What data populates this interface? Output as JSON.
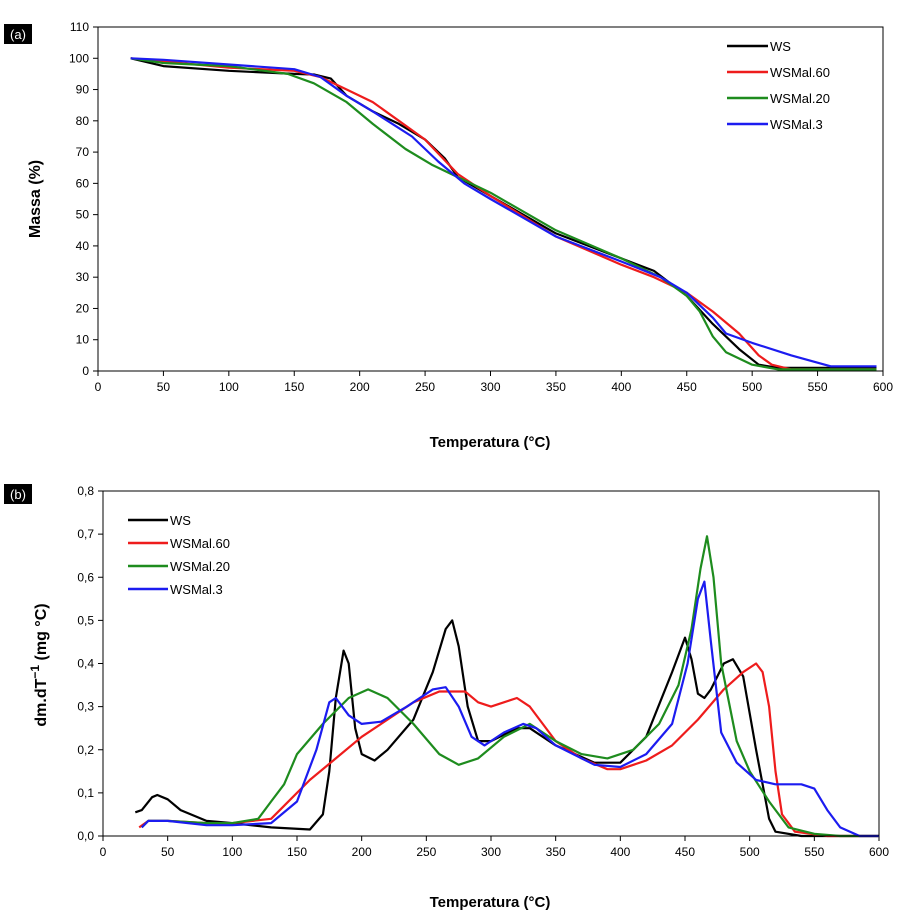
{
  "colors": {
    "WS": "#000000",
    "WSMal.60": "#ee1c1c",
    "WSMal.20": "#1e8c1e",
    "WSMal.3": "#1c1cf0"
  },
  "chart_data": [
    {
      "panel": "(a)",
      "type": "line",
      "xlabel": "Temperatura (°C)",
      "ylabel": "Massa (%)",
      "xlim": [
        0,
        600
      ],
      "ylim": [
        0,
        110
      ],
      "xticks": [
        "0",
        "50",
        "100",
        "150",
        "200",
        "250",
        "300",
        "350",
        "400",
        "450",
        "500",
        "550",
        "600"
      ],
      "yticks": [
        "0",
        "10",
        "20",
        "30",
        "40",
        "50",
        "60",
        "70",
        "80",
        "90",
        "100",
        "110"
      ],
      "legend_position": "top-right",
      "series": [
        {
          "name": "WS",
          "points": [
            [
              25,
              100
            ],
            [
              50,
              97.5
            ],
            [
              100,
              96
            ],
            [
              150,
              95
            ],
            [
              165,
              94.8
            ],
            [
              178,
              93.5
            ],
            [
              190,
              88
            ],
            [
              210,
              83
            ],
            [
              230,
              79
            ],
            [
              250,
              74
            ],
            [
              265,
              68
            ],
            [
              275,
              62
            ],
            [
              300,
              56
            ],
            [
              350,
              44
            ],
            [
              400,
              36
            ],
            [
              425,
              32
            ],
            [
              450,
              24
            ],
            [
              470,
              15
            ],
            [
              490,
              7
            ],
            [
              505,
              2
            ],
            [
              520,
              1
            ],
            [
              550,
              1
            ],
            [
              595,
              1
            ]
          ]
        },
        {
          "name": "WSMal.60",
          "points": [
            [
              25,
              100
            ],
            [
              50,
              99
            ],
            [
              100,
              97
            ],
            [
              150,
              96
            ],
            [
              170,
              94
            ],
            [
              190,
              90
            ],
            [
              210,
              86
            ],
            [
              230,
              80
            ],
            [
              250,
              74
            ],
            [
              275,
              63
            ],
            [
              300,
              56
            ],
            [
              350,
              43
            ],
            [
              400,
              34
            ],
            [
              425,
              30
            ],
            [
              450,
              25
            ],
            [
              470,
              19
            ],
            [
              490,
              12
            ],
            [
              505,
              5
            ],
            [
              515,
              2
            ],
            [
              530,
              0.5
            ],
            [
              595,
              0.5
            ]
          ]
        },
        {
          "name": "WSMal.20",
          "points": [
            [
              25,
              100
            ],
            [
              50,
              98.5
            ],
            [
              100,
              97.5
            ],
            [
              145,
              95
            ],
            [
              165,
              92
            ],
            [
              190,
              86
            ],
            [
              210,
              79
            ],
            [
              235,
              71
            ],
            [
              255,
              66
            ],
            [
              280,
              61
            ],
            [
              300,
              57
            ],
            [
              350,
              45
            ],
            [
              400,
              36
            ],
            [
              430,
              30
            ],
            [
              450,
              24
            ],
            [
              460,
              19
            ],
            [
              470,
              11
            ],
            [
              480,
              6
            ],
            [
              500,
              2
            ],
            [
              520,
              0.5
            ],
            [
              595,
              0.5
            ]
          ]
        },
        {
          "name": "WSMal.3",
          "points": [
            [
              25,
              100
            ],
            [
              50,
              99.5
            ],
            [
              100,
              98
            ],
            [
              150,
              96.5
            ],
            [
              170,
              94
            ],
            [
              190,
              88
            ],
            [
              210,
              83
            ],
            [
              240,
              75
            ],
            [
              260,
              67
            ],
            [
              280,
              60
            ],
            [
              300,
              55
            ],
            [
              350,
              43
            ],
            [
              400,
              35
            ],
            [
              430,
              30
            ],
            [
              450,
              25
            ],
            [
              470,
              17
            ],
            [
              480,
              12
            ],
            [
              500,
              9
            ],
            [
              530,
              5
            ],
            [
              560,
              1.5
            ],
            [
              580,
              1.5
            ],
            [
              595,
              1.5
            ]
          ]
        }
      ]
    },
    {
      "panel": "(b)",
      "type": "line",
      "xlabel": "Temperatura (°C)",
      "ylabel": "dm.dT",
      "ylabel_sup": "−1",
      "ylabel_unit": "(mg °C)",
      "xlim": [
        0,
        600
      ],
      "ylim": [
        0,
        0.8
      ],
      "xticks": [
        "0",
        "50",
        "100",
        "150",
        "200",
        "250",
        "300",
        "350",
        "400",
        "450",
        "500",
        "550",
        "600"
      ],
      "yticks": [
        "0,0",
        "0,1",
        "0,2",
        "0,3",
        "0,4",
        "0,5",
        "0,6",
        "0,7",
        "0,8"
      ],
      "legend_position": "top-left",
      "series": [
        {
          "name": "WS",
          "points": [
            [
              25,
              0.055
            ],
            [
              30,
              0.06
            ],
            [
              38,
              0.09
            ],
            [
              42,
              0.095
            ],
            [
              50,
              0.085
            ],
            [
              60,
              0.06
            ],
            [
              80,
              0.035
            ],
            [
              100,
              0.03
            ],
            [
              130,
              0.02
            ],
            [
              160,
              0.015
            ],
            [
              170,
              0.05
            ],
            [
              175,
              0.15
            ],
            [
              180,
              0.32
            ],
            [
              186,
              0.43
            ],
            [
              190,
              0.4
            ],
            [
              195,
              0.25
            ],
            [
              200,
              0.19
            ],
            [
              210,
              0.175
            ],
            [
              220,
              0.2
            ],
            [
              240,
              0.27
            ],
            [
              255,
              0.38
            ],
            [
              265,
              0.48
            ],
            [
              270,
              0.5
            ],
            [
              275,
              0.44
            ],
            [
              282,
              0.3
            ],
            [
              290,
              0.22
            ],
            [
              300,
              0.22
            ],
            [
              320,
              0.25
            ],
            [
              330,
              0.25
            ],
            [
              350,
              0.21
            ],
            [
              380,
              0.17
            ],
            [
              400,
              0.17
            ],
            [
              420,
              0.23
            ],
            [
              440,
              0.38
            ],
            [
              450,
              0.46
            ],
            [
              455,
              0.41
            ],
            [
              460,
              0.33
            ],
            [
              465,
              0.32
            ],
            [
              470,
              0.34
            ],
            [
              480,
              0.4
            ],
            [
              487,
              0.41
            ],
            [
              495,
              0.37
            ],
            [
              505,
              0.2
            ],
            [
              515,
              0.04
            ],
            [
              520,
              0.01
            ],
            [
              540,
              0.0
            ],
            [
              600,
              0.0
            ]
          ]
        },
        {
          "name": "WSMal.60",
          "points": [
            [
              28,
              0.02
            ],
            [
              35,
              0.035
            ],
            [
              50,
              0.035
            ],
            [
              80,
              0.03
            ],
            [
              100,
              0.03
            ],
            [
              130,
              0.04
            ],
            [
              140,
              0.07
            ],
            [
              160,
              0.13
            ],
            [
              180,
              0.18
            ],
            [
              200,
              0.23
            ],
            [
              220,
              0.27
            ],
            [
              240,
              0.31
            ],
            [
              260,
              0.335
            ],
            [
              280,
              0.335
            ],
            [
              290,
              0.31
            ],
            [
              300,
              0.3
            ],
            [
              310,
              0.31
            ],
            [
              320,
              0.32
            ],
            [
              330,
              0.3
            ],
            [
              350,
              0.22
            ],
            [
              370,
              0.18
            ],
            [
              390,
              0.155
            ],
            [
              400,
              0.155
            ],
            [
              420,
              0.175
            ],
            [
              440,
              0.21
            ],
            [
              460,
              0.27
            ],
            [
              480,
              0.34
            ],
            [
              495,
              0.38
            ],
            [
              505,
              0.4
            ],
            [
              510,
              0.38
            ],
            [
              515,
              0.3
            ],
            [
              520,
              0.15
            ],
            [
              525,
              0.05
            ],
            [
              535,
              0.01
            ],
            [
              560,
              0.0
            ],
            [
              600,
              0.0
            ]
          ]
        },
        {
          "name": "WSMal.20",
          "points": [
            [
              30,
              0.02
            ],
            [
              35,
              0.035
            ],
            [
              50,
              0.035
            ],
            [
              80,
              0.03
            ],
            [
              100,
              0.03
            ],
            [
              120,
              0.04
            ],
            [
              130,
              0.08
            ],
            [
              140,
              0.12
            ],
            [
              150,
              0.19
            ],
            [
              170,
              0.26
            ],
            [
              190,
              0.32
            ],
            [
              205,
              0.34
            ],
            [
              220,
              0.32
            ],
            [
              240,
              0.26
            ],
            [
              260,
              0.19
            ],
            [
              275,
              0.165
            ],
            [
              290,
              0.18
            ],
            [
              310,
              0.23
            ],
            [
              330,
              0.26
            ],
            [
              350,
              0.22
            ],
            [
              370,
              0.19
            ],
            [
              390,
              0.18
            ],
            [
              410,
              0.2
            ],
            [
              430,
              0.26
            ],
            [
              445,
              0.35
            ],
            [
              455,
              0.48
            ],
            [
              462,
              0.62
            ],
            [
              467,
              0.695
            ],
            [
              472,
              0.6
            ],
            [
              478,
              0.4
            ],
            [
              490,
              0.22
            ],
            [
              500,
              0.15
            ],
            [
              515,
              0.08
            ],
            [
              530,
              0.02
            ],
            [
              550,
              0.005
            ],
            [
              570,
              0.0
            ],
            [
              600,
              0.0
            ]
          ]
        },
        {
          "name": "WSMal.3",
          "points": [
            [
              30,
              0.02
            ],
            [
              35,
              0.035
            ],
            [
              50,
              0.035
            ],
            [
              80,
              0.025
            ],
            [
              100,
              0.025
            ],
            [
              130,
              0.03
            ],
            [
              150,
              0.08
            ],
            [
              165,
              0.2
            ],
            [
              175,
              0.31
            ],
            [
              180,
              0.32
            ],
            [
              190,
              0.28
            ],
            [
              200,
              0.26
            ],
            [
              215,
              0.265
            ],
            [
              235,
              0.3
            ],
            [
              255,
              0.34
            ],
            [
              265,
              0.345
            ],
            [
              275,
              0.3
            ],
            [
              285,
              0.23
            ],
            [
              295,
              0.21
            ],
            [
              310,
              0.24
            ],
            [
              325,
              0.26
            ],
            [
              335,
              0.25
            ],
            [
              350,
              0.21
            ],
            [
              380,
              0.165
            ],
            [
              400,
              0.16
            ],
            [
              420,
              0.19
            ],
            [
              440,
              0.26
            ],
            [
              452,
              0.4
            ],
            [
              460,
              0.55
            ],
            [
              465,
              0.59
            ],
            [
              470,
              0.45
            ],
            [
              478,
              0.24
            ],
            [
              490,
              0.17
            ],
            [
              505,
              0.13
            ],
            [
              520,
              0.12
            ],
            [
              540,
              0.12
            ],
            [
              550,
              0.11
            ],
            [
              560,
              0.06
            ],
            [
              570,
              0.02
            ],
            [
              585,
              0.0
            ],
            [
              600,
              0.0
            ]
          ]
        }
      ]
    }
  ]
}
